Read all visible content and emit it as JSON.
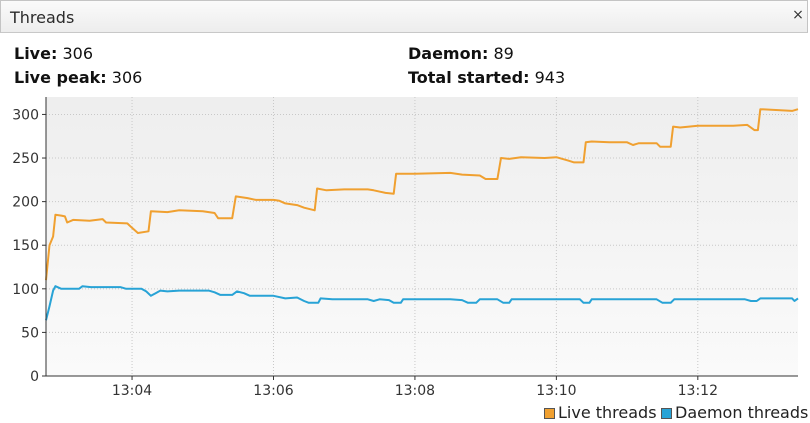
{
  "window": {
    "title": "Threads",
    "close_glyph": "×"
  },
  "stats": {
    "live_label": "Live:",
    "live_value": "306",
    "peak_label": "Live peak:",
    "peak_value": "306",
    "daemon_label": "Daemon:",
    "daemon_value": "89",
    "total_label": "Total started:",
    "total_value": "943"
  },
  "chart_data": {
    "type": "line",
    "title": "",
    "xlabel": "",
    "ylabel": "",
    "x_range": [
      "13:02:47",
      "13:13:25"
    ],
    "ylim": [
      0,
      320
    ],
    "x_ticks": [
      "13:04",
      "13:06",
      "13:08",
      "13:10",
      "13:12"
    ],
    "y_ticks": [
      0,
      50,
      100,
      150,
      200,
      250,
      300
    ],
    "grid": true,
    "legend_position": "bottom-right",
    "series": [
      {
        "name": "Live threads",
        "color": "#f0a030",
        "points": [
          [
            "13:02:47",
            110
          ],
          [
            "13:02:50",
            150
          ],
          [
            "13:02:53",
            160
          ],
          [
            "13:02:55",
            185
          ],
          [
            "13:03:00",
            184
          ],
          [
            "13:03:03",
            183
          ],
          [
            "13:03:05",
            176
          ],
          [
            "13:03:10",
            179
          ],
          [
            "13:03:24",
            178
          ],
          [
            "13:03:35",
            180
          ],
          [
            "13:03:38",
            176
          ],
          [
            "13:03:56",
            175
          ],
          [
            "13:04:00",
            170
          ],
          [
            "13:04:05",
            164
          ],
          [
            "13:04:14",
            166
          ],
          [
            "13:04:16",
            189
          ],
          [
            "13:04:30",
            188
          ],
          [
            "13:04:40",
            190
          ],
          [
            "13:05:00",
            189
          ],
          [
            "13:05:10",
            187
          ],
          [
            "13:05:13",
            181
          ],
          [
            "13:05:25",
            181
          ],
          [
            "13:05:28",
            206
          ],
          [
            "13:05:38",
            204
          ],
          [
            "13:05:45",
            202
          ],
          [
            "13:06:00",
            202
          ],
          [
            "13:06:05",
            201
          ],
          [
            "13:06:10",
            198
          ],
          [
            "13:06:20",
            196
          ],
          [
            "13:06:26",
            193
          ],
          [
            "13:06:35",
            190
          ],
          [
            "13:06:37",
            215
          ],
          [
            "13:06:45",
            213
          ],
          [
            "13:07:00",
            214
          ],
          [
            "13:07:20",
            214
          ],
          [
            "13:07:25",
            213
          ],
          [
            "13:07:35",
            210
          ],
          [
            "13:07:42",
            209
          ],
          [
            "13:07:44",
            232
          ],
          [
            "13:08:00",
            232
          ],
          [
            "13:08:30",
            233
          ],
          [
            "13:08:40",
            231
          ],
          [
            "13:08:55",
            230
          ],
          [
            "13:09:00",
            226
          ],
          [
            "13:09:10",
            226
          ],
          [
            "13:09:13",
            250
          ],
          [
            "13:09:20",
            249
          ],
          [
            "13:09:30",
            251
          ],
          [
            "13:09:50",
            250
          ],
          [
            "13:10:00",
            251
          ],
          [
            "13:10:10",
            247
          ],
          [
            "13:10:15",
            245
          ],
          [
            "13:10:23",
            245
          ],
          [
            "13:10:25",
            268
          ],
          [
            "13:10:30",
            269
          ],
          [
            "13:10:45",
            268
          ],
          [
            "13:11:00",
            268
          ],
          [
            "13:11:05",
            265
          ],
          [
            "13:11:10",
            267
          ],
          [
            "13:11:25",
            267
          ],
          [
            "13:11:28",
            263
          ],
          [
            "13:11:37",
            263
          ],
          [
            "13:11:39",
            286
          ],
          [
            "13:11:45",
            285
          ],
          [
            "13:12:00",
            287
          ],
          [
            "13:12:30",
            287
          ],
          [
            "13:12:42",
            288
          ],
          [
            "13:12:48",
            282
          ],
          [
            "13:12:51",
            282
          ],
          [
            "13:12:53",
            306
          ],
          [
            "13:13:20",
            304
          ],
          [
            "13:13:25",
            306
          ]
        ]
      },
      {
        "name": "Daemon threads",
        "color": "#28a3d6",
        "points": [
          [
            "13:02:47",
            64
          ],
          [
            "13:02:50",
            80
          ],
          [
            "13:02:53",
            98
          ],
          [
            "13:02:55",
            103
          ],
          [
            "13:03:00",
            100
          ],
          [
            "13:03:15",
            100
          ],
          [
            "13:03:18",
            103
          ],
          [
            "13:03:25",
            102
          ],
          [
            "13:03:50",
            102
          ],
          [
            "13:03:55",
            100
          ],
          [
            "13:04:08",
            100
          ],
          [
            "13:04:12",
            97
          ],
          [
            "13:04:16",
            92
          ],
          [
            "13:04:20",
            95
          ],
          [
            "13:04:24",
            98
          ],
          [
            "13:04:30",
            97
          ],
          [
            "13:04:40",
            98
          ],
          [
            "13:05:05",
            98
          ],
          [
            "13:05:10",
            96
          ],
          [
            "13:05:15",
            93
          ],
          [
            "13:05:25",
            93
          ],
          [
            "13:05:29",
            97
          ],
          [
            "13:05:35",
            95
          ],
          [
            "13:05:40",
            92
          ],
          [
            "13:06:00",
            92
          ],
          [
            "13:06:10",
            89
          ],
          [
            "13:06:20",
            90
          ],
          [
            "13:06:26",
            86
          ],
          [
            "13:06:30",
            84
          ],
          [
            "13:06:38",
            84
          ],
          [
            "13:06:40",
            89
          ],
          [
            "13:06:50",
            88
          ],
          [
            "13:07:20",
            88
          ],
          [
            "13:07:25",
            86
          ],
          [
            "13:07:30",
            88
          ],
          [
            "13:07:38",
            87
          ],
          [
            "13:07:42",
            84
          ],
          [
            "13:07:48",
            84
          ],
          [
            "13:07:50",
            88
          ],
          [
            "13:08:30",
            88
          ],
          [
            "13:08:40",
            87
          ],
          [
            "13:08:45",
            84
          ],
          [
            "13:08:52",
            84
          ],
          [
            "13:08:55",
            88
          ],
          [
            "13:09:10",
            88
          ],
          [
            "13:09:15",
            84
          ],
          [
            "13:09:20",
            84
          ],
          [
            "13:09:22",
            88
          ],
          [
            "13:10:20",
            88
          ],
          [
            "13:10:23",
            84
          ],
          [
            "13:10:28",
            84
          ],
          [
            "13:10:30",
            88
          ],
          [
            "13:11:25",
            88
          ],
          [
            "13:11:30",
            84
          ],
          [
            "13:11:37",
            84
          ],
          [
            "13:11:40",
            88
          ],
          [
            "13:12:40",
            88
          ],
          [
            "13:12:45",
            86
          ],
          [
            "13:12:50",
            86
          ],
          [
            "13:12:53",
            89
          ],
          [
            "13:13:20",
            89
          ],
          [
            "13:13:22",
            86
          ],
          [
            "13:13:25",
            89
          ]
        ]
      }
    ]
  }
}
